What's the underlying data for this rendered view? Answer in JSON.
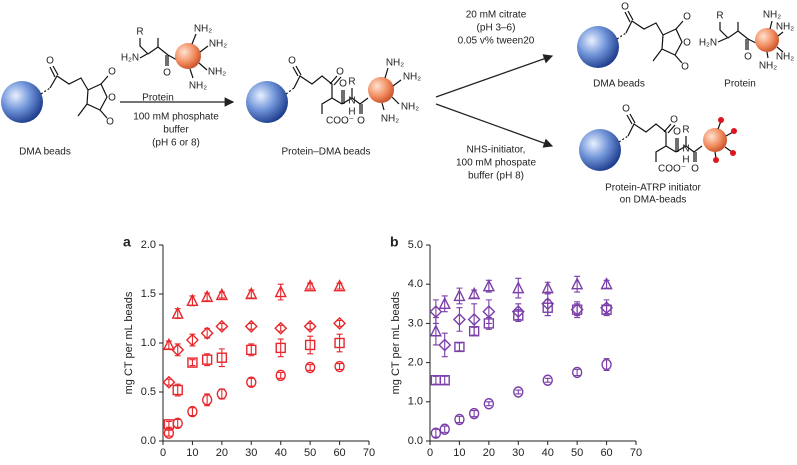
{
  "scheme": {
    "atoms": {
      "O": "O",
      "R": "R",
      "NH2": "NH₂",
      "H2N": "H₂N",
      "N": "N",
      "H": "H",
      "COO": "COO⁻"
    },
    "start_label": "DMA beads",
    "protein_label": "Protein",
    "conditions_1": [
      "100 mM phosphate",
      "buffer",
      "(pH 6 or 8)"
    ],
    "middle_label": "Protein–DMA beads",
    "conditions_2": [
      "20 mM citrate",
      "(pH 3–6)",
      "0.05 v% tween20"
    ],
    "product_1_label": "DMA beads",
    "product_1_protein": "Protein",
    "conditions_3": [
      "NHS-initiator,",
      "100 mM phospate",
      "buffer (pH 8)"
    ],
    "product_2_label": [
      "Protein-ATRP initiator",
      "on DMA-beads"
    ]
  },
  "chart_data": [
    {
      "type": "scatter",
      "panel": "a",
      "xlabel": "Time (min)",
      "ylabel": "mg CT per mL beads",
      "color": "#e8262b",
      "xlim": [
        0,
        70
      ],
      "xticks": [
        0,
        10,
        20,
        30,
        40,
        50,
        60,
        70
      ],
      "ylim": [
        0,
        2
      ],
      "yticks": [
        {
          "value": 0,
          "label": "0.0"
        },
        0.5,
        {
          "value": 1,
          "label": "1.0"
        },
        1.5,
        {
          "value": 2,
          "label": "2.0"
        }
      ],
      "series": [
        {
          "marker": "triangle",
          "x": [
            2,
            5,
            10,
            15,
            20,
            30,
            40,
            50,
            60
          ],
          "values": [
            0.98,
            1.3,
            1.43,
            1.47,
            1.49,
            1.5,
            1.52,
            1.58,
            1.58
          ],
          "errors": [
            0.04,
            0.05,
            0.05,
            0.04,
            0.03,
            0.04,
            0.08,
            0.03,
            0.03
          ]
        },
        {
          "marker": "diamond",
          "x": [
            2,
            5,
            10,
            15,
            20,
            30,
            40,
            50,
            60
          ],
          "values": [
            0.6,
            0.93,
            1.03,
            1.1,
            1.17,
            1.17,
            1.15,
            1.17,
            1.2
          ],
          "errors": [
            0.03,
            0.06,
            0.06,
            0.05,
            0.03,
            0.03,
            0.03,
            0.03,
            0.03
          ]
        },
        {
          "marker": "square",
          "x": [
            2,
            5,
            10,
            15,
            20,
            30,
            40,
            50,
            60
          ],
          "values": [
            0.17,
            0.52,
            0.8,
            0.83,
            0.85,
            0.93,
            0.95,
            0.98,
            1.0
          ],
          "errors": [
            0.03,
            0.06,
            0.03,
            0.06,
            0.09,
            0.06,
            0.09,
            0.09,
            0.09
          ]
        },
        {
          "marker": "circle",
          "x": [
            2,
            5,
            10,
            15,
            20,
            30,
            40,
            50,
            60
          ],
          "values": [
            0.08,
            0.18,
            0.3,
            0.42,
            0.48,
            0.6,
            0.67,
            0.75,
            0.76
          ],
          "errors": [
            0.03,
            0.04,
            0.04,
            0.06,
            0.05,
            0.04,
            0.03,
            0.03,
            0.03
          ]
        }
      ]
    },
    {
      "type": "scatter",
      "panel": "b",
      "xlabel": "Time (min)",
      "ylabel": "mg CT per mL beads",
      "color": "#7b3fa8",
      "xlim": [
        0,
        70
      ],
      "xticks": [
        0,
        10,
        20,
        30,
        40,
        50,
        60,
        70
      ],
      "ylim": [
        0,
        5
      ],
      "yticks": [
        {
          "value": 0,
          "label": "0.0"
        },
        {
          "value": 1,
          "label": "1.0"
        },
        {
          "value": 2,
          "label": "2.0"
        },
        {
          "value": 3,
          "label": "3.0"
        },
        {
          "value": 4,
          "label": "4.0"
        },
        {
          "value": 5,
          "label": "5.0"
        }
      ],
      "series": [
        {
          "marker": "triangle",
          "x": [
            2,
            5,
            10,
            15,
            20,
            30,
            40,
            50,
            60
          ],
          "values": [
            2.8,
            3.5,
            3.7,
            3.75,
            3.95,
            3.9,
            3.9,
            4.0,
            4.0
          ],
          "errors": [
            0.35,
            0.2,
            0.2,
            0.1,
            0.15,
            0.25,
            0.15,
            0.2,
            0.1
          ]
        },
        {
          "marker": "diamond",
          "x": [
            2,
            5,
            10,
            15,
            20,
            30,
            40,
            50,
            60
          ],
          "values": [
            3.3,
            2.45,
            3.1,
            3.1,
            3.3,
            3.3,
            3.5,
            3.35,
            3.4
          ],
          "errors": [
            0.3,
            0.3,
            0.3,
            0.4,
            0.3,
            0.2,
            0.3,
            0.2,
            0.2
          ]
        },
        {
          "marker": "square",
          "x": [
            2,
            5,
            10,
            15,
            20,
            30,
            40,
            50,
            60
          ],
          "values": [
            1.55,
            1.55,
            2.4,
            2.8,
            3.0,
            3.2,
            3.4,
            3.35,
            3.35
          ],
          "errors": [
            0.1,
            0.1,
            0.1,
            0.1,
            0.15,
            0.15,
            0.2,
            0.15,
            0.1
          ]
        },
        {
          "marker": "circle",
          "x": [
            2,
            5,
            10,
            15,
            20,
            30,
            40,
            50,
            60
          ],
          "values": [
            0.2,
            0.3,
            0.55,
            0.7,
            0.95,
            1.25,
            1.55,
            1.75,
            1.95
          ],
          "errors": [
            0.1,
            0.08,
            0.08,
            0.08,
            0.05,
            0.05,
            0.05,
            0.08,
            0.15
          ]
        }
      ]
    }
  ]
}
